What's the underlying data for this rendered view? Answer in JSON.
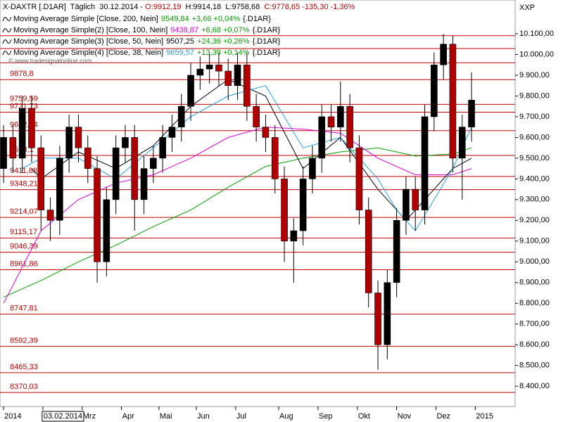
{
  "chart_data": {
    "type": "candlestick",
    "header": {
      "symbol": "X-DAXTR [.D1AR]",
      "period": "Täglich",
      "date": "30.12.2014 -",
      "open_label": "O:9912,19",
      "high_label": "H:9914,18",
      "low_label": "L:9758,68",
      "close_label": "C:9778,65 -135,30 -1,36%"
    },
    "currency": "XXP",
    "watermark": "© www.tradesignalonline.com",
    "up_color": "#000000",
    "down_color": "#b00000",
    "level_color": "#c00000",
    "xlim": [
      -1.9,
      273.3
    ],
    "ylim": [
      8302,
      10263
    ],
    "xticks": [
      {
        "value": 0,
        "label": "2014"
      },
      {
        "value": 21,
        "label": "03.02.2014"
      },
      {
        "value": 42,
        "label": "Mrz"
      },
      {
        "value": 63,
        "label": "Apr"
      },
      {
        "value": 83,
        "label": "Mai"
      },
      {
        "value": 103,
        "label": "Jun"
      },
      {
        "value": 124,
        "label": "Jul"
      },
      {
        "value": 147,
        "label": "Aug"
      },
      {
        "value": 168,
        "label": "Sep"
      },
      {
        "value": 189,
        "label": "Okt"
      },
      {
        "value": 210,
        "label": "Nov"
      },
      {
        "value": 231,
        "label": "Dez"
      },
      {
        "value": 252,
        "label": "2015"
      }
    ],
    "yticks": [
      {
        "value": 8400,
        "label": "8.400,00"
      },
      {
        "value": 8500,
        "label": "8.500,00"
      },
      {
        "value": 8600,
        "label": "8.600,00"
      },
      {
        "value": 8700,
        "label": "8.700,00"
      },
      {
        "value": 8800,
        "label": "8.800,00"
      },
      {
        "value": 8900,
        "label": "8.900,00"
      },
      {
        "value": 9000,
        "label": "9.000,00"
      },
      {
        "value": 9100,
        "label": "9.100,00"
      },
      {
        "value": 9200,
        "label": "9.200,00"
      },
      {
        "value": 9300,
        "label": "9.300,00"
      },
      {
        "value": 9400,
        "label": "9.400,00"
      },
      {
        "value": 9500,
        "label": "9.500,00"
      },
      {
        "value": 9600,
        "label": "9.600,00"
      },
      {
        "value": 9700,
        "label": "9.700,00"
      },
      {
        "value": 9800,
        "label": "9.800,00"
      },
      {
        "value": 9900,
        "label": "9.900,00"
      },
      {
        "value": 10000,
        "label": "10.000,00"
      },
      {
        "value": 10100,
        "label": "10.100,00"
      }
    ],
    "levels": [
      10091,
      10029,
      9960,
      {
        "value": 9878.8,
        "label": "9878,8"
      },
      {
        "value": 9759.59,
        "label": "9759,59"
      },
      {
        "value": 9721.73,
        "label": "9721,73"
      },
      {
        "value": 9632.84,
        "label": "9632,84"
      },
      {
        "value": 9513.1,
        "label": "9513,1"
      },
      {
        "value": 9411.88,
        "label": "9411,88"
      },
      {
        "value": 9348.21,
        "label": "9348,21"
      },
      {
        "value": 9214.07,
        "label": "9214,07"
      },
      {
        "value": 9115.17,
        "label": "9115,17"
      },
      {
        "value": 9046.39,
        "label": "9046,39"
      },
      {
        "value": 8961.86,
        "label": "8961,86"
      },
      {
        "value": 8747.81,
        "label": "8747,81"
      },
      {
        "value": 8592.39,
        "label": "8592,39"
      },
      {
        "value": 8465.33,
        "label": "8465,33"
      },
      {
        "value": 8370.03,
        "label": "8370,03"
      }
    ],
    "x": [
      0,
      5,
      10,
      15,
      20,
      25,
      30,
      35,
      40,
      45,
      50,
      55,
      60,
      65,
      70,
      75,
      80,
      85,
      90,
      95,
      100,
      105,
      110,
      115,
      120,
      125,
      130,
      135,
      140,
      145,
      150,
      155,
      160,
      165,
      170,
      175,
      180,
      185,
      190,
      195,
      200,
      205,
      210,
      215,
      220,
      225,
      230,
      235,
      240,
      245,
      250
    ],
    "open": [
      9450,
      9600,
      9500,
      9740,
      9550,
      9250,
      9200,
      9500,
      9650,
      9550,
      9450,
      9000,
      9300,
      9550,
      9600,
      9300,
      9450,
      9500,
      9600,
      9650,
      9750,
      9900,
      9930,
      9950,
      9920,
      9850,
      9950,
      9750,
      9650,
      9600,
      9400,
      9100,
      9150,
      9400,
      9500,
      9700,
      9650,
      9750,
      9550,
      9250,
      8850,
      8600,
      8900,
      9200,
      9350,
      9250,
      9700,
      9950,
      10050,
      9500,
      9650
    ],
    "high": [
      9660,
      9660,
      9800,
      9800,
      9610,
      9310,
      9560,
      9710,
      9710,
      9610,
      9510,
      9360,
      9610,
      9660,
      9660,
      9510,
      9560,
      9660,
      9710,
      9810,
      9960,
      9990,
      10010,
      10010,
      9980,
      10010,
      10010,
      9810,
      9710,
      9660,
      9460,
      9210,
      9460,
      9560,
      9760,
      9760,
      9870,
      9810,
      9610,
      9310,
      8910,
      8960,
      9260,
      9410,
      9410,
      9760,
      10010,
      10100,
      10090,
      9710,
      9914
    ],
    "low": [
      9380,
      9430,
      9430,
      9480,
      9150,
      9100,
      9130,
      9430,
      9480,
      9380,
      8900,
      8930,
      9230,
      9480,
      9150,
      9230,
      9380,
      9430,
      9530,
      9580,
      9680,
      9830,
      9860,
      9850,
      9780,
      9780,
      9680,
      9580,
      9530,
      9330,
      9000,
      8900,
      9080,
      9330,
      9430,
      9580,
      9580,
      9480,
      9180,
      8780,
      8480,
      8530,
      8830,
      9130,
      9150,
      9180,
      9630,
      9880,
      9430,
      9300,
      9580
    ],
    "close": [
      9600,
      9500,
      9740,
      9550,
      9250,
      9200,
      9500,
      9650,
      9550,
      9450,
      9000,
      9300,
      9550,
      9600,
      9300,
      9450,
      9500,
      9600,
      9650,
      9750,
      9900,
      9930,
      9950,
      9920,
      9850,
      9950,
      9750,
      9650,
      9600,
      9400,
      9100,
      9150,
      9400,
      9500,
      9700,
      9650,
      9750,
      9550,
      9250,
      8850,
      8600,
      8900,
      9200,
      9350,
      9250,
      9700,
      9950,
      10050,
      9500,
      9650,
      9780
    ],
    "series": [
      {
        "name": "Moving Average Simple [Close, 200, Nein]",
        "color": "#00a000",
        "last_label": "9549,84",
        "change_label": "+3,66 +0,04%",
        "tag": "{.D1AR}",
        "x": [
          0,
          20,
          40,
          60,
          80,
          100,
          120,
          140,
          160,
          180,
          200,
          220,
          240,
          250
        ],
        "values": [
          8830,
          8910,
          9000,
          9080,
          9170,
          9250,
          9360,
          9460,
          9500,
          9530,
          9550,
          9510,
          9520,
          9550
        ]
      },
      {
        "name": "Moving Average Simple(2) [Close, 100, Nein]",
        "color": "#e000e0",
        "last_label": "9438,87",
        "change_label": "+6,68 +0,07%",
        "tag": "{.D1AR}",
        "x": [
          0,
          20,
          40,
          60,
          80,
          100,
          120,
          140,
          160,
          180,
          200,
          220,
          240,
          250
        ],
        "values": [
          8800,
          9150,
          9300,
          9380,
          9420,
          9500,
          9600,
          9650,
          9640,
          9620,
          9500,
          9420,
          9420,
          9450
        ]
      },
      {
        "name": "Moving Average Simple(3) [Close, 50, Nein]",
        "color": "#000000",
        "last_label": "9507,25",
        "change_label": "+24,36 +0,26%",
        "tag": "{.D1AR}",
        "x": [
          15,
          20,
          40,
          60,
          80,
          100,
          120,
          140,
          160,
          180,
          200,
          215,
          225,
          240,
          250
        ],
        "values": [
          9450,
          9400,
          9530,
          9450,
          9560,
          9750,
          9880,
          9800,
          9450,
          9600,
          9350,
          9200,
          9300,
          9450,
          9500
        ]
      },
      {
        "name": "Moving Average Simple(4) [Close, 38, Nein]",
        "color": "#20a0e0",
        "last_label": "9659,57",
        "change_label": "+13,39 +0,14%",
        "tag": "{.D1AR}",
        "x": [
          10,
          20,
          40,
          60,
          80,
          100,
          120,
          140,
          160,
          180,
          200,
          210,
          220,
          240,
          250
        ],
        "values": [
          9450,
          9500,
          9500,
          9400,
          9550,
          9700,
          9800,
          9850,
          9550,
          9600,
          9400,
          9250,
          9150,
          9450,
          9650
        ]
      }
    ]
  }
}
